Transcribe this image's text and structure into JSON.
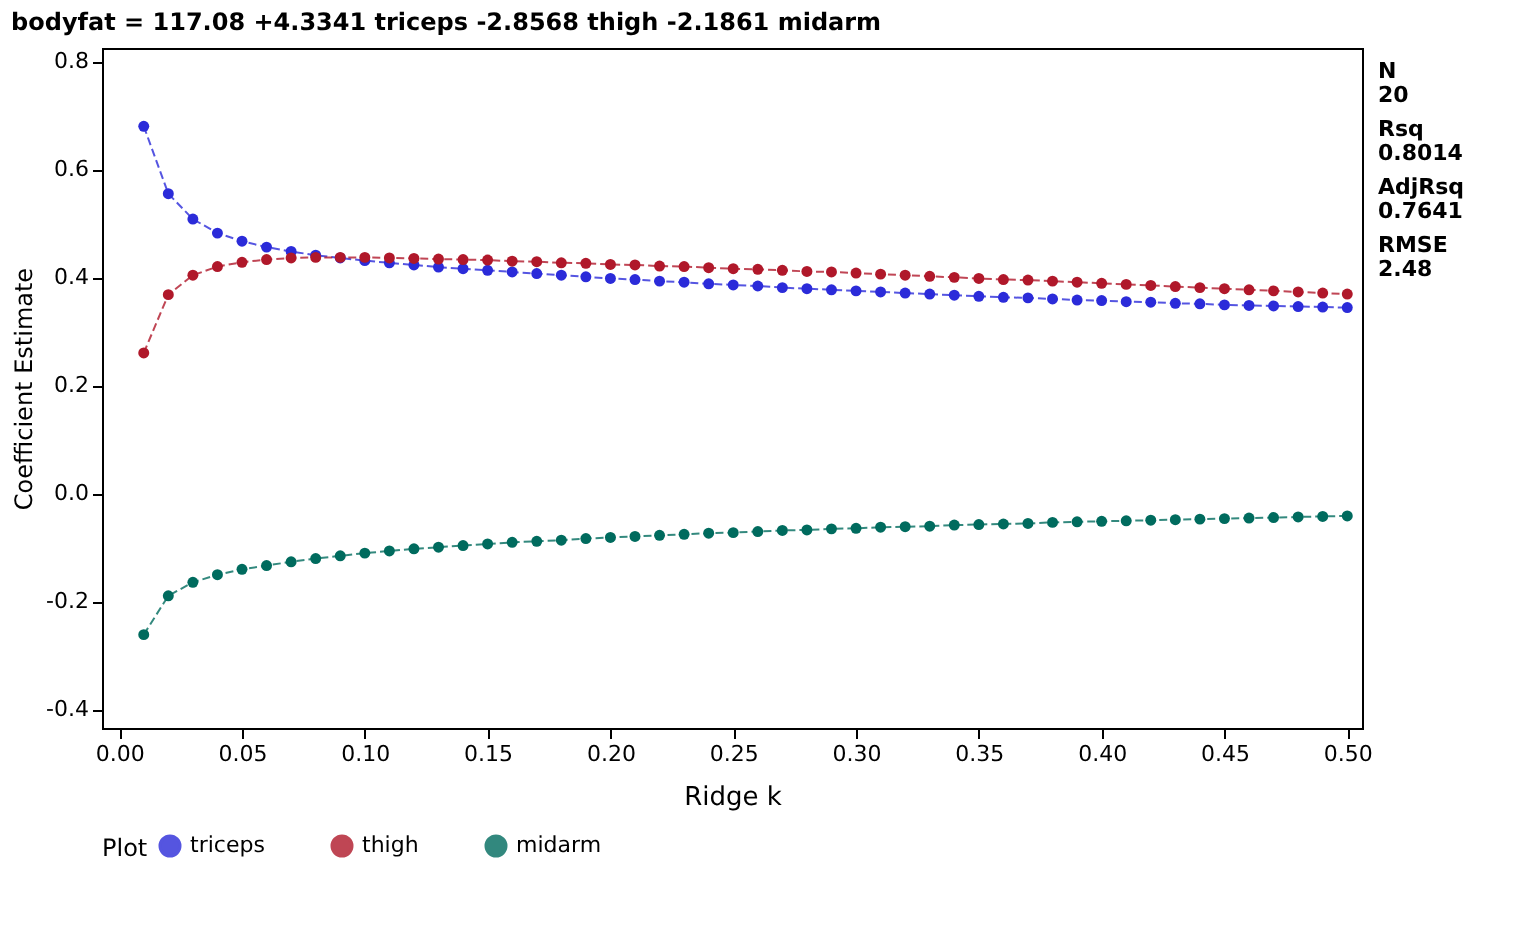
{
  "chart_data": {
    "type": "line",
    "title": "bodyfat = 117.08 +4.3341 triceps -2.8568 thigh -2.1861 midarm",
    "xlabel": "Ridge k",
    "ylabel": "Coefficient Estimate",
    "legend_title": "Plot",
    "x": [
      0.01,
      0.02,
      0.03,
      0.04,
      0.05,
      0.06,
      0.07,
      0.08,
      0.09,
      0.1,
      0.11,
      0.12,
      0.13,
      0.14,
      0.15,
      0.16,
      0.17,
      0.18,
      0.19,
      0.2,
      0.21,
      0.22,
      0.23,
      0.24,
      0.25,
      0.26,
      0.27,
      0.28,
      0.29,
      0.3,
      0.31,
      0.32,
      0.33,
      0.34,
      0.35,
      0.36,
      0.37,
      0.38,
      0.39,
      0.4,
      0.41,
      0.42,
      0.43,
      0.44,
      0.45,
      0.46,
      0.47,
      0.48,
      0.49,
      0.5
    ],
    "series": [
      {
        "name": "triceps",
        "color": "#2b2bd9",
        "values": [
          0.68,
          0.555,
          0.508,
          0.482,
          0.467,
          0.456,
          0.448,
          0.441,
          0.436,
          0.431,
          0.427,
          0.423,
          0.419,
          0.416,
          0.413,
          0.41,
          0.407,
          0.404,
          0.401,
          0.398,
          0.396,
          0.393,
          0.391,
          0.388,
          0.386,
          0.384,
          0.381,
          0.379,
          0.377,
          0.375,
          0.373,
          0.371,
          0.369,
          0.367,
          0.365,
          0.363,
          0.362,
          0.36,
          0.358,
          0.357,
          0.355,
          0.354,
          0.352,
          0.351,
          0.349,
          0.348,
          0.347,
          0.346,
          0.345,
          0.344
        ]
      },
      {
        "name": "thigh",
        "color": "#b0182a",
        "values": [
          0.26,
          0.368,
          0.404,
          0.42,
          0.428,
          0.433,
          0.436,
          0.437,
          0.437,
          0.437,
          0.436,
          0.435,
          0.434,
          0.433,
          0.432,
          0.43,
          0.429,
          0.427,
          0.426,
          0.424,
          0.423,
          0.421,
          0.42,
          0.418,
          0.416,
          0.415,
          0.413,
          0.411,
          0.41,
          0.408,
          0.406,
          0.404,
          0.402,
          0.4,
          0.398,
          0.396,
          0.395,
          0.393,
          0.391,
          0.389,
          0.387,
          0.385,
          0.383,
          0.381,
          0.379,
          0.377,
          0.375,
          0.373,
          0.371,
          0.369
        ]
      },
      {
        "name": "midarm",
        "color": "#006b5e",
        "values": [
          -0.262,
          -0.19,
          -0.165,
          -0.151,
          -0.141,
          -0.134,
          -0.127,
          -0.121,
          -0.116,
          -0.111,
          -0.107,
          -0.103,
          -0.1,
          -0.097,
          -0.094,
          -0.091,
          -0.089,
          -0.087,
          -0.084,
          -0.082,
          -0.08,
          -0.078,
          -0.076,
          -0.074,
          -0.073,
          -0.071,
          -0.069,
          -0.068,
          -0.066,
          -0.065,
          -0.063,
          -0.062,
          -0.061,
          -0.059,
          -0.058,
          -0.057,
          -0.056,
          -0.054,
          -0.053,
          -0.052,
          -0.051,
          -0.05,
          -0.049,
          -0.048,
          -0.047,
          -0.046,
          -0.045,
          -0.044,
          -0.043,
          -0.042
        ]
      }
    ],
    "xlim": [
      -0.007,
      0.506
    ],
    "ylim": [
      -0.435,
      0.825
    ],
    "xticks": [
      {
        "value": 0,
        "label": "0.00"
      },
      {
        "value": 0.05,
        "label": "0.05"
      },
      {
        "value": 0.1,
        "label": "0.10"
      },
      {
        "value": 0.15,
        "label": "0.15"
      },
      {
        "value": 0.2,
        "label": "0.20"
      },
      {
        "value": 0.25,
        "label": "0.25"
      },
      {
        "value": 0.3,
        "label": "0.30"
      },
      {
        "value": 0.35,
        "label": "0.35"
      },
      {
        "value": 0.4,
        "label": "0.40"
      },
      {
        "value": 0.45,
        "label": "0.45"
      },
      {
        "value": 0.5,
        "label": "0.50"
      }
    ],
    "yticks": [
      {
        "value": -0.4,
        "label": "-0.4"
      },
      {
        "value": -0.2,
        "label": "-0.2"
      },
      {
        "value": 0,
        "label": "0.0"
      },
      {
        "value": 0.2,
        "label": "0.2"
      },
      {
        "value": 0.4,
        "label": "0.4"
      },
      {
        "value": 0.6,
        "label": "0.6"
      },
      {
        "value": 0.8,
        "label": "0.8"
      }
    ],
    "annotations": [
      "N",
      "20",
      "Rsq",
      "0.8014",
      "AdjRsq",
      "0.7641",
      "RMSE",
      "2.48"
    ],
    "grid": false,
    "legend": "bottom",
    "marker": "circle",
    "line_style": "dashed"
  }
}
